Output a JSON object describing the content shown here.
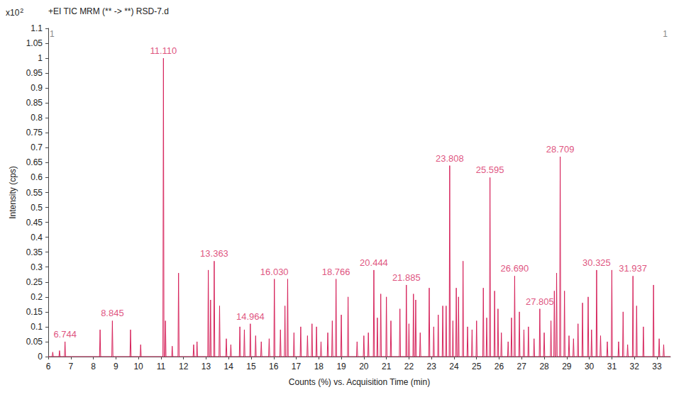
{
  "chart_data": {
    "type": "line",
    "title": "+EI TIC MRM (** -> **) RSD-7.d",
    "y_scale_label": {
      "text": "x10",
      "superscript": "2"
    },
    "corner_labels": {
      "left": "1",
      "right": "1"
    },
    "x_label": "Counts (%) vs. Acquisition Time (min)",
    "y_label": "Intensity (cps)",
    "color": "#d6245c",
    "grid": false,
    "xlim": [
      6,
      33.6
    ],
    "xticks": [
      6,
      7,
      8,
      9,
      10,
      11,
      12,
      13,
      14,
      15,
      16,
      17,
      18,
      19,
      20,
      21,
      22,
      23,
      24,
      25,
      26,
      27,
      28,
      29,
      30,
      31,
      32,
      33
    ],
    "ylim": [
      0,
      1.1
    ],
    "yticks": [
      0,
      0.05,
      0.1,
      0.15,
      0.2,
      0.25,
      0.3,
      0.35,
      0.4,
      0.45,
      0.5,
      0.55,
      0.6,
      0.65,
      0.7,
      0.75,
      0.8,
      0.85,
      0.9,
      0.95,
      1,
      1.05,
      1.1
    ],
    "x": [
      6,
      6.175,
      6.2,
      6.225,
      6.475,
      6.5,
      6.525,
      6.719,
      6.744,
      6.769,
      8.275,
      8.3,
      8.325,
      8.82,
      8.845,
      8.87,
      9.625,
      9.65,
      9.675,
      10.075,
      10.1,
      10.125,
      11.085,
      11.11,
      11.135,
      11.175,
      11.2,
      11.225,
      11.475,
      11.5,
      11.525,
      11.755,
      11.78,
      11.805,
      12.425,
      12.45,
      12.475,
      12.575,
      12.6,
      12.625,
      13.075,
      13.1,
      13.125,
      13.175,
      13.2,
      13.225,
      13.338,
      13.363,
      13.388,
      13.575,
      13.6,
      13.625,
      13.875,
      13.9,
      13.925,
      14.075,
      14.1,
      14.125,
      14.475,
      14.5,
      14.525,
      14.675,
      14.7,
      14.725,
      14.939,
      14.964,
      14.989,
      15.175,
      15.2,
      15.225,
      15.425,
      15.45,
      15.475,
      15.775,
      15.8,
      15.825,
      16.005,
      16.03,
      16.055,
      16.275,
      16.3,
      16.325,
      16.475,
      16.5,
      16.525,
      16.595,
      16.62,
      16.645,
      16.875,
      16.9,
      16.925,
      17.175,
      17.2,
      17.225,
      17.475,
      17.5,
      17.525,
      17.675,
      17.7,
      17.725,
      17.875,
      17.9,
      17.925,
      18.075,
      18.1,
      18.125,
      18.375,
      18.4,
      18.425,
      18.575,
      18.6,
      18.625,
      18.741,
      18.766,
      18.791,
      18.975,
      19,
      19.025,
      19.275,
      19.3,
      19.325,
      19.675,
      19.7,
      19.725,
      19.975,
      20,
      20.025,
      20.175,
      20.2,
      20.225,
      20.419,
      20.444,
      20.469,
      20.575,
      20.6,
      20.625,
      20.725,
      20.75,
      20.775,
      20.975,
      21,
      21.025,
      21.175,
      21.2,
      21.225,
      21.575,
      21.6,
      21.625,
      21.86,
      21.885,
      21.91,
      21.975,
      22,
      22.025,
      22.175,
      22.2,
      22.225,
      22.275,
      22.3,
      22.325,
      22.475,
      22.5,
      22.525,
      22.875,
      22.9,
      22.925,
      23.075,
      23.1,
      23.125,
      23.275,
      23.3,
      23.325,
      23.475,
      23.5,
      23.525,
      23.625,
      23.65,
      23.675,
      23.783,
      23.808,
      23.833,
      23.925,
      23.95,
      23.975,
      24.075,
      24.1,
      24.125,
      24.175,
      24.2,
      24.225,
      24.375,
      24.4,
      24.425,
      24.575,
      24.6,
      24.625,
      24.775,
      24.8,
      24.825,
      24.975,
      25,
      25.025,
      25.275,
      25.3,
      25.325,
      25.425,
      25.45,
      25.475,
      25.57,
      25.595,
      25.62,
      25.775,
      25.8,
      25.825,
      25.925,
      25.95,
      25.975,
      26.075,
      26.1,
      26.125,
      26.375,
      26.4,
      26.425,
      26.525,
      26.55,
      26.575,
      26.665,
      26.69,
      26.715,
      26.875,
      26.9,
      26.925,
      27.075,
      27.1,
      27.125,
      27.275,
      27.3,
      27.325,
      27.525,
      27.55,
      27.575,
      27.78,
      27.805,
      27.83,
      27.975,
      28,
      28.025,
      28.275,
      28.3,
      28.325,
      28.425,
      28.45,
      28.475,
      28.525,
      28.55,
      28.575,
      28.684,
      28.709,
      28.734,
      28.875,
      28.9,
      28.925,
      29.075,
      29.1,
      29.125,
      29.275,
      29.3,
      29.325,
      29.475,
      29.5,
      29.525,
      29.675,
      29.7,
      29.725,
      29.925,
      29.95,
      29.975,
      30.075,
      30.1,
      30.125,
      30.3,
      30.325,
      30.35,
      30.475,
      30.5,
      30.525,
      30.775,
      30.8,
      30.825,
      30.975,
      31,
      31.025,
      31.275,
      31.3,
      31.325,
      31.475,
      31.5,
      31.525,
      31.675,
      31.7,
      31.725,
      31.912,
      31.937,
      31.962,
      32.075,
      32.1,
      32.125,
      32.375,
      32.4,
      32.425,
      32.825,
      32.85,
      32.875,
      33.075,
      33.1,
      33.125,
      33.275,
      33.3,
      33.325,
      33.6
    ],
    "values": [
      0,
      0,
      0.015,
      0,
      0,
      0.02,
      0,
      0,
      0.05,
      0,
      0,
      0.09,
      0,
      0,
      0.12,
      0,
      0,
      0.09,
      0,
      0,
      0.04,
      0,
      0,
      1.0,
      0,
      0,
      0.12,
      0,
      0,
      0.035,
      0,
      0,
      0.28,
      0,
      0,
      0.04,
      0,
      0,
      0.05,
      0,
      0,
      0.29,
      0,
      0,
      0.19,
      0,
      0,
      0.32,
      0,
      0,
      0.17,
      0,
      0,
      0.06,
      0,
      0,
      0.04,
      0,
      0,
      0.1,
      0,
      0,
      0.09,
      0,
      0,
      0.11,
      0,
      0,
      0.07,
      0,
      0,
      0.05,
      0,
      0,
      0.06,
      0,
      0,
      0.26,
      0,
      0,
      0.09,
      0,
      0,
      0.17,
      0,
      0,
      0.26,
      0,
      0,
      0.08,
      0,
      0,
      0.1,
      0,
      0,
      0.07,
      0,
      0,
      0.11,
      0,
      0,
      0.1,
      0,
      0,
      0.05,
      0,
      0,
      0.08,
      0,
      0,
      0.12,
      0,
      0,
      0.26,
      0,
      0,
      0.14,
      0,
      0,
      0.2,
      0,
      0,
      0.05,
      0,
      0,
      0.07,
      0,
      0,
      0.08,
      0,
      0,
      0.29,
      0,
      0,
      0.13,
      0,
      0,
      0.21,
      0,
      0,
      0.2,
      0,
      0,
      0.12,
      0,
      0,
      0.16,
      0,
      0,
      0.24,
      0,
      0,
      0.11,
      0,
      0,
      0.21,
      0,
      0,
      0.19,
      0,
      0,
      0.08,
      0,
      0,
      0.23,
      0,
      0,
      0.1,
      0,
      0,
      0.14,
      0,
      0,
      0.17,
      0,
      0,
      0.17,
      0,
      0,
      0.64,
      0,
      0,
      0.12,
      0,
      0,
      0.23,
      0,
      0,
      0.2,
      0,
      0,
      0.32,
      0,
      0,
      0.1,
      0,
      0,
      0.09,
      0,
      0,
      0.12,
      0,
      0,
      0.23,
      0,
      0,
      0.13,
      0,
      0,
      0.6,
      0,
      0,
      0.22,
      0,
      0,
      0.16,
      0,
      0,
      0.08,
      0,
      0,
      0.05,
      0,
      0,
      0.13,
      0,
      0,
      0.27,
      0,
      0,
      0.15,
      0,
      0,
      0.09,
      0,
      0,
      0.1,
      0,
      0,
      0.06,
      0,
      0,
      0.16,
      0,
      0,
      0.08,
      0,
      0,
      0.12,
      0,
      0,
      0.22,
      0,
      0,
      0.28,
      0,
      0,
      0.67,
      0,
      0,
      0.22,
      0,
      0,
      0.07,
      0,
      0,
      0.06,
      0,
      0,
      0.11,
      0,
      0,
      0.18,
      0,
      0,
      0.2,
      0,
      0,
      0.09,
      0,
      0,
      0.29,
      0,
      0,
      0.07,
      0,
      0,
      0.05,
      0,
      0,
      0.29,
      0,
      0,
      0.05,
      0,
      0,
      0.15,
      0,
      0,
      0.04,
      0,
      0,
      0.27,
      0,
      0,
      0.17,
      0,
      0,
      0.1,
      0,
      0,
      0.24,
      0,
      0,
      0.06,
      0,
      0,
      0.04,
      0,
      0
    ],
    "annotations": [
      {
        "text": "6.744",
        "x": 6.744,
        "y": 0.05
      },
      {
        "text": "8.845",
        "x": 8.845,
        "y": 0.12
      },
      {
        "text": "11.110",
        "x": 11.11,
        "y": 1.0
      },
      {
        "text": "13.363",
        "x": 13.363,
        "y": 0.32
      },
      {
        "text": "14.964",
        "x": 14.964,
        "y": 0.11
      },
      {
        "text": "16.030",
        "x": 16.03,
        "y": 0.26
      },
      {
        "text": "18.766",
        "x": 18.766,
        "y": 0.26
      },
      {
        "text": "20.444",
        "x": 20.444,
        "y": 0.29
      },
      {
        "text": "21.885",
        "x": 21.885,
        "y": 0.24
      },
      {
        "text": "23.808",
        "x": 23.808,
        "y": 0.64
      },
      {
        "text": "25.595",
        "x": 25.595,
        "y": 0.6
      },
      {
        "text": "26.690",
        "x": 26.69,
        "y": 0.27
      },
      {
        "text": "27.805",
        "x": 27.805,
        "y": 0.16
      },
      {
        "text": "28.709",
        "x": 28.709,
        "y": 0.67
      },
      {
        "text": "30.325",
        "x": 30.325,
        "y": 0.29
      },
      {
        "text": "31.937",
        "x": 31.937,
        "y": 0.27
      }
    ]
  }
}
